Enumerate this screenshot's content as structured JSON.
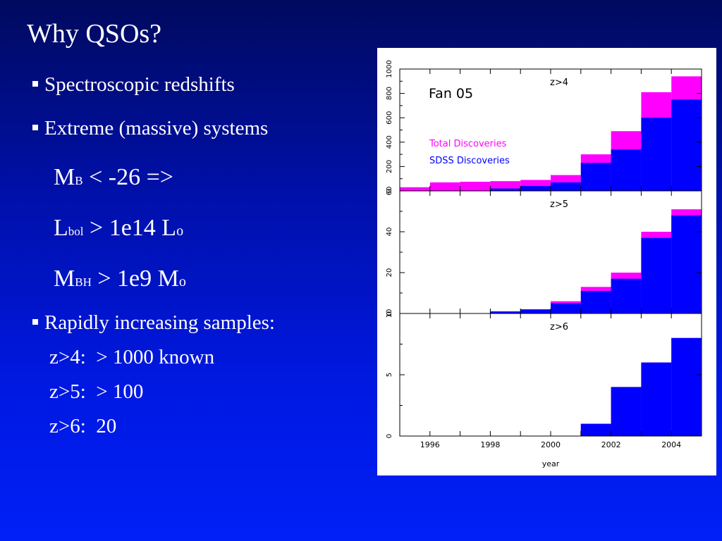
{
  "slide": {
    "title": "Why QSOs?",
    "bullets": [
      "Spectroscopic redshifts",
      "Extreme (massive) systems",
      "Rapidly increasing samples:"
    ],
    "formulas": [
      {
        "main": "M",
        "sub": "B",
        "rest": " < -26 =>"
      },
      {
        "main": "L",
        "sub": "bol",
        "rest": " > 1e14 L",
        "sun": "o"
      },
      {
        "main": "M",
        "sub": "BH",
        "rest": " > 1e9 M",
        "sun": "o"
      }
    ],
    "samples": [
      "z>4:  > 1000 known",
      "z>5:  > 100",
      "z>6:  20"
    ]
  },
  "chart_data": {
    "type": "bar",
    "annotation": "Fan 05",
    "xlabel": "year",
    "xlim": [
      1995,
      2005
    ],
    "xticks": [
      1996,
      1998,
      2000,
      2002,
      2004
    ],
    "colors": {
      "total": "#ff00ff",
      "sdss": "#0000ff"
    },
    "legend": {
      "total": "Total Discoveries",
      "sdss": "SDSS Discoveries",
      "position": "middle-left"
    },
    "panels": [
      {
        "label": "z>4",
        "ylim": [
          0,
          1000
        ],
        "yticks": [
          0,
          200,
          400,
          600,
          800,
          1000
        ],
        "bins": [
          1995,
          1996,
          1997,
          1998,
          1999,
          2000,
          2001,
          2002,
          2003,
          2004,
          2005
        ],
        "series": [
          {
            "name": "Total Discoveries",
            "values": [
              30,
              70,
              75,
              80,
              90,
              130,
              300,
              490,
              810,
              940
            ]
          },
          {
            "name": "SDSS Discoveries",
            "values": [
              0,
              0,
              0,
              20,
              40,
              70,
              230,
              340,
              600,
              750
            ]
          }
        ]
      },
      {
        "label": "z>5",
        "ylim": [
          0,
          60
        ],
        "yticks": [
          0,
          20,
          40,
          60
        ],
        "bins": [
          1995,
          1996,
          1997,
          1998,
          1999,
          2000,
          2001,
          2002,
          2003,
          2004,
          2005
        ],
        "series": [
          {
            "name": "Total Discoveries",
            "values": [
              0,
              0,
              0,
              1,
              2,
              6,
              13,
              20,
              40,
              51
            ]
          },
          {
            "name": "SDSS Discoveries",
            "values": [
              0,
              0,
              0,
              1,
              2,
              5,
              11,
              17,
              37,
              48
            ]
          }
        ]
      },
      {
        "label": "z>6",
        "ylim": [
          0,
          10
        ],
        "yticks": [
          0,
          5,
          10
        ],
        "bins": [
          1995,
          1996,
          1997,
          1998,
          1999,
          2000,
          2001,
          2002,
          2003,
          2004,
          2005
        ],
        "series": [
          {
            "name": "Total Discoveries",
            "values": [
              0,
              0,
              0,
              0,
              0,
              0,
              1,
              4,
              6,
              8
            ]
          },
          {
            "name": "SDSS Discoveries",
            "values": [
              0,
              0,
              0,
              0,
              0,
              0,
              1,
              4,
              6,
              8
            ]
          }
        ]
      }
    ]
  }
}
